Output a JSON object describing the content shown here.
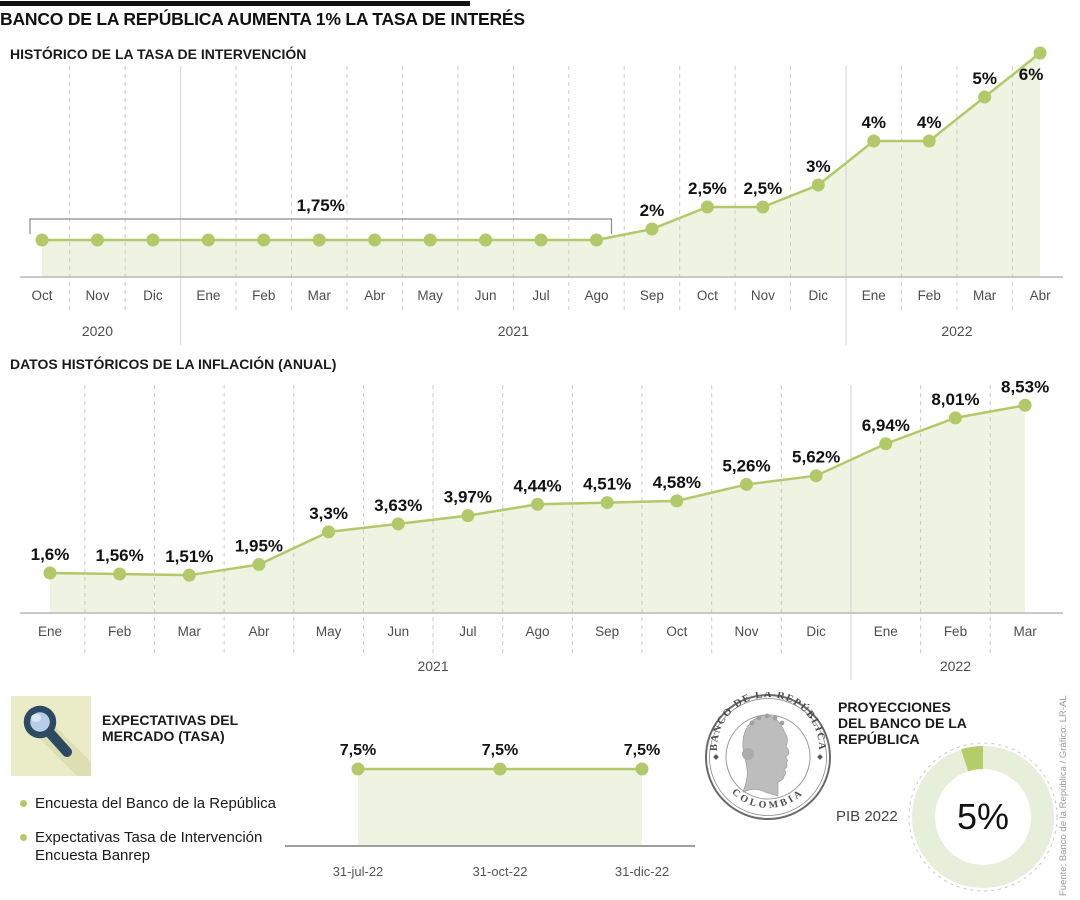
{
  "page": {
    "title": "BANCO DE LA REPÚBLICA AUMENTA 1% LA TASA DE INTERÉS",
    "source": "Fuente: Banco de la República / Gráfico: LR-AL"
  },
  "colors": {
    "line": "#b2c969",
    "fill": "#eef3e2",
    "grid": "#cbcbcb",
    "axis": "#b9b9b9",
    "separator": "#d4d4d4",
    "bracket": "#8c8c8c",
    "icon_bg": "#e9ecc6",
    "icon_shadow": "#dbdfb1",
    "icon_glass": "#2d4a63",
    "icon_lens": "#b9cde9",
    "donut_rest": "#e7eeda",
    "donut_slice": "#b5cc6a"
  },
  "chart_data": [
    {
      "id": "tasa",
      "type": "line",
      "title": "HISTÓRICO DE LA TASA DE INTERVENCIÓN",
      "categories": [
        "Oct",
        "Nov",
        "Dic",
        "Ene",
        "Feb",
        "Mar",
        "Abr",
        "May",
        "Jun",
        "Jul",
        "Ago",
        "Sep",
        "Oct",
        "Nov",
        "Dic",
        "Ene",
        "Feb",
        "Mar",
        "Abr"
      ],
      "values": [
        1.75,
        1.75,
        1.75,
        1.75,
        1.75,
        1.75,
        1.75,
        1.75,
        1.75,
        1.75,
        1.75,
        2,
        2.5,
        2.5,
        3,
        4,
        4,
        5,
        6
      ],
      "labels": [
        "",
        "",
        "",
        "",
        "",
        "",
        "",
        "",
        "",
        "",
        "",
        "2%",
        "2,5%",
        "2,5%",
        "3%",
        "4%",
        "4%",
        "5%",
        "6%"
      ],
      "bracket_label": "1,75%",
      "bracket_range": [
        0,
        10
      ],
      "years": [
        {
          "label": "2020",
          "span": [
            0,
            2
          ]
        },
        {
          "label": "2021",
          "span": [
            3,
            14
          ]
        },
        {
          "label": "2022",
          "span": [
            15,
            18
          ]
        }
      ],
      "ylim": [
        0,
        6.5
      ],
      "grid": "dashed-vertical",
      "unit": "%"
    },
    {
      "id": "inflacion",
      "type": "line",
      "title": "DATOS HISTÓRICOS DE LA INFLACIÓN (ANUAL)",
      "categories": [
        "Ene",
        "Feb",
        "Mar",
        "Abr",
        "May",
        "Jun",
        "Jul",
        "Ago",
        "Sep",
        "Oct",
        "Nov",
        "Dic",
        "Ene",
        "Feb",
        "Mar"
      ],
      "values": [
        1.6,
        1.56,
        1.51,
        1.95,
        3.3,
        3.63,
        3.97,
        4.44,
        4.51,
        4.58,
        5.26,
        5.62,
        6.94,
        8.01,
        8.53
      ],
      "labels": [
        "1,6%",
        "1,56%",
        "1,51%",
        "1,95%",
        "3,3%",
        "3,63%",
        "3,97%",
        "4,44%",
        "4,51%",
        "4,58%",
        "5,26%",
        "5,62%",
        "6,94%",
        "8,01%",
        "8,53%"
      ],
      "years": [
        {
          "label": "2021",
          "span": [
            0,
            11
          ]
        },
        {
          "label": "2022",
          "span": [
            12,
            14
          ]
        }
      ],
      "ylim": [
        0,
        9
      ],
      "grid": "dashed-vertical",
      "unit": "%"
    },
    {
      "id": "expectativas",
      "type": "line",
      "categories": [
        "31-jul-22",
        "31-oct-22",
        "31-dic-22"
      ],
      "values": [
        7.5,
        7.5,
        7.5
      ],
      "labels": [
        "7,5%",
        "7,5%",
        "7,5%"
      ],
      "unit": "%"
    },
    {
      "id": "pib",
      "type": "donut",
      "label": "PIB 2022",
      "center_label": "5%",
      "value": 5,
      "total": 100
    }
  ],
  "expectativas": {
    "heading": "EXPECTATIVAS DEL MERCADO (TASA)",
    "legend": [
      "Encuesta del Banco de la República",
      "Expectativas Tasa de Intervención Encuesta Banrep"
    ]
  },
  "proyecciones": {
    "heading": "PROYECCIONES DEL BANCO DE LA REPÚBLICA",
    "pib_label": "PIB 2022",
    "pib_value": "5%"
  },
  "logo": {
    "top_text": "BANCO DE LA REPÚBLICA",
    "bottom_text": "COLOMBIA"
  }
}
